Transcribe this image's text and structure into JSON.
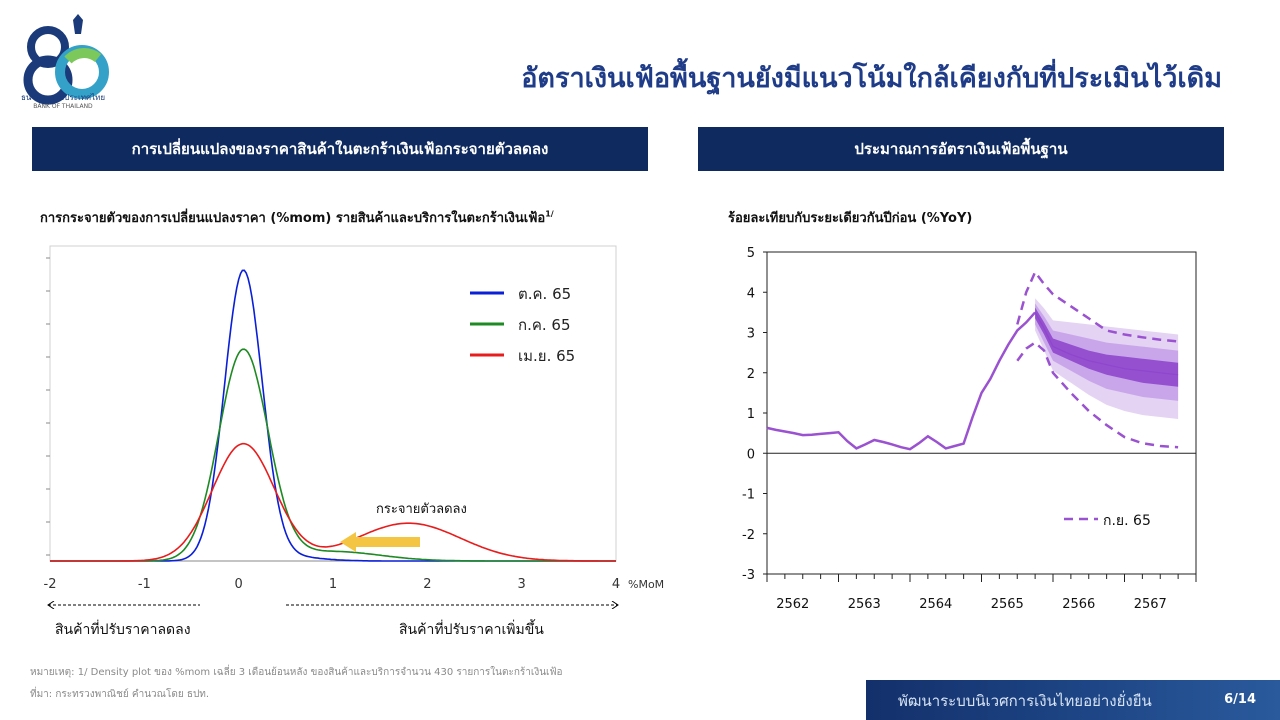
{
  "logo": {
    "number": "80",
    "name": "ธนาคารแห่งประเทศไทย",
    "name_en": "BANK OF THAILAND"
  },
  "page_title": "อัตราเงินเฟ้อพื้นฐานยังมีแนวโน้มใกล้เคียงกับที่ประเมินไว้เดิม",
  "left_panel": {
    "header": "การเปลี่ยนแปลงของราคาสินค้าในตะกร้าเงินเฟ้อกระจายตัวลดลง",
    "chart_title": "การกระจายตัวของการเปลี่ยนแปลงราคา (%mom) รายสินค้าและบริการในตะกร้าเงินเฟ้อ",
    "chart_title_sup": "1/"
  },
  "right_panel": {
    "header": "ประมาณการอัตราเงินเฟ้อพื้นฐาน",
    "chart_title": "ร้อยละเทียบกับระยะเดียวกันปีก่อน (%YoY)"
  },
  "footnote": {
    "line1": "หมายเหตุ: 1/ Density plot ของ %mom เฉลี่ย 3 เดือนย้อนหลัง ของสินค้าและบริการจำนวน 430 รายการในตะกร้าเงินเฟ้อ",
    "line2": "ที่มา: กระทรวงพาณิชย์ คำนวณโดย ธปท."
  },
  "footer": {
    "text": "พัฒนาระบบนิเวศการเงินไทยอย่างยั่งยืน",
    "page": "6/14"
  },
  "colors": {
    "title": "#1f3c88",
    "header_bg": "#0f2a5e",
    "oct": "#0a1fd8",
    "jul": "#1e8a23",
    "apr": "#e81c1c",
    "arrow": "#f4c542",
    "fan_line": "#9a52d0",
    "fan_band": "#9450cf"
  },
  "chart_data": [
    {
      "type": "line",
      "x_ticks": [
        -2,
        -1,
        0,
        1,
        2,
        3,
        4
      ],
      "x_unit": "%MoM",
      "xlim": [
        -2,
        4
      ],
      "series": [
        {
          "name": "ต.ค. 65",
          "color": "#0a1fd8",
          "components": [
            {
              "w": 0.97,
              "mu": 0.05,
              "sd": 0.2
            },
            {
              "w": 0.03,
              "mu": 0.45,
              "sd": 0.35
            }
          ]
        },
        {
          "name": "ก.ค. 65",
          "color": "#1e8a23",
          "components": [
            {
              "w": 0.92,
              "mu": 0.05,
              "sd": 0.26
            },
            {
              "w": 0.08,
              "mu": 1.0,
              "sd": 0.5
            }
          ]
        },
        {
          "name": "เม.ย. 65",
          "color": "#e81c1c",
          "components": [
            {
              "w": 0.65,
              "mu": 0.05,
              "sd": 0.33
            },
            {
              "w": 0.35,
              "mu": 1.8,
              "sd": 0.55
            }
          ]
        }
      ],
      "annotations": {
        "spread_label": "กระจายตัวลดลง",
        "left_range_label": "สินค้าที่ปรับราคาลดลง",
        "right_range_label": "สินค้าที่ปรับราคาเพิ่มขึ้น"
      }
    },
    {
      "type": "area",
      "title": "ร้อยละเทียบกับระยะเดียวกันปีก่อน (%YoY)",
      "ylim": [
        -3,
        5
      ],
      "y_ticks": [
        -3,
        -2,
        -1,
        0,
        1,
        2,
        3,
        4,
        5
      ],
      "x_ticks": [
        "2562",
        "2563",
        "2564",
        "2565",
        "2566",
        "2567"
      ],
      "xlim": [
        2562,
        2568
      ],
      "actual": {
        "x": [
          2562.0,
          2562.125,
          2562.25,
          2562.375,
          2562.5,
          2562.625,
          2562.75,
          2562.875,
          2563.0,
          2563.125,
          2563.25,
          2563.375,
          2563.5,
          2563.625,
          2563.75,
          2563.875,
          2564.0,
          2564.125,
          2564.25,
          2564.375,
          2564.5,
          2564.625,
          2564.75,
          2564.875,
          2565.0,
          2565.125,
          2565.25,
          2565.375,
          2565.5,
          2565.625,
          2565.75
        ],
        "y": [
          0.63,
          0.58,
          0.54,
          0.5,
          0.45,
          0.46,
          0.48,
          0.5,
          0.52,
          0.3,
          0.12,
          0.22,
          0.33,
          0.28,
          0.22,
          0.15,
          0.1,
          0.25,
          0.42,
          0.28,
          0.12,
          0.18,
          0.24,
          0.9,
          1.5,
          1.85,
          2.3,
          2.7,
          3.05,
          3.25,
          3.5
        ]
      },
      "fan": {
        "x": [
          2565.75,
          2565.875,
          2566.0,
          2566.25,
          2566.5,
          2566.75,
          2567.0,
          2567.25,
          2567.5,
          2567.75
        ],
        "median": [
          3.5,
          3.1,
          2.65,
          2.45,
          2.3,
          2.2,
          2.1,
          2.05,
          2.0,
          1.95
        ],
        "band_inner": [
          [
            3.35,
            3.62
          ],
          [
            2.95,
            3.25
          ],
          [
            2.5,
            2.85
          ],
          [
            2.3,
            2.7
          ],
          [
            2.1,
            2.55
          ],
          [
            1.95,
            2.45
          ],
          [
            1.85,
            2.4
          ],
          [
            1.75,
            2.35
          ],
          [
            1.7,
            2.3
          ],
          [
            1.65,
            2.25
          ]
        ],
        "band_mid": [
          [
            3.2,
            3.72
          ],
          [
            2.75,
            3.4
          ],
          [
            2.3,
            3.05
          ],
          [
            2.05,
            2.95
          ],
          [
            1.8,
            2.85
          ],
          [
            1.6,
            2.75
          ],
          [
            1.5,
            2.7
          ],
          [
            1.4,
            2.65
          ],
          [
            1.35,
            2.6
          ],
          [
            1.3,
            2.55
          ]
        ],
        "band_outer": [
          [
            3.05,
            3.85
          ],
          [
            2.55,
            3.6
          ],
          [
            2.05,
            3.3
          ],
          [
            1.75,
            3.25
          ],
          [
            1.45,
            3.2
          ],
          [
            1.2,
            3.15
          ],
          [
            1.05,
            3.1
          ],
          [
            0.95,
            3.05
          ],
          [
            0.9,
            3.0
          ],
          [
            0.85,
            2.95
          ]
        ]
      },
      "previous_forecast": {
        "name": "ก.ย. 65",
        "x": [
          2565.5,
          2565.625,
          2565.75,
          2565.875,
          2566.0,
          2566.25,
          2566.5,
          2566.75,
          2567.0,
          2567.25,
          2567.5,
          2567.75
        ],
        "upper": [
          3.2,
          4.0,
          4.5,
          4.2,
          3.95,
          3.65,
          3.35,
          3.05,
          2.95,
          2.88,
          2.82,
          2.78
        ],
        "lower": [
          2.3,
          2.6,
          2.75,
          2.55,
          2.0,
          1.5,
          1.05,
          0.7,
          0.4,
          0.25,
          0.18,
          0.15
        ]
      }
    }
  ]
}
